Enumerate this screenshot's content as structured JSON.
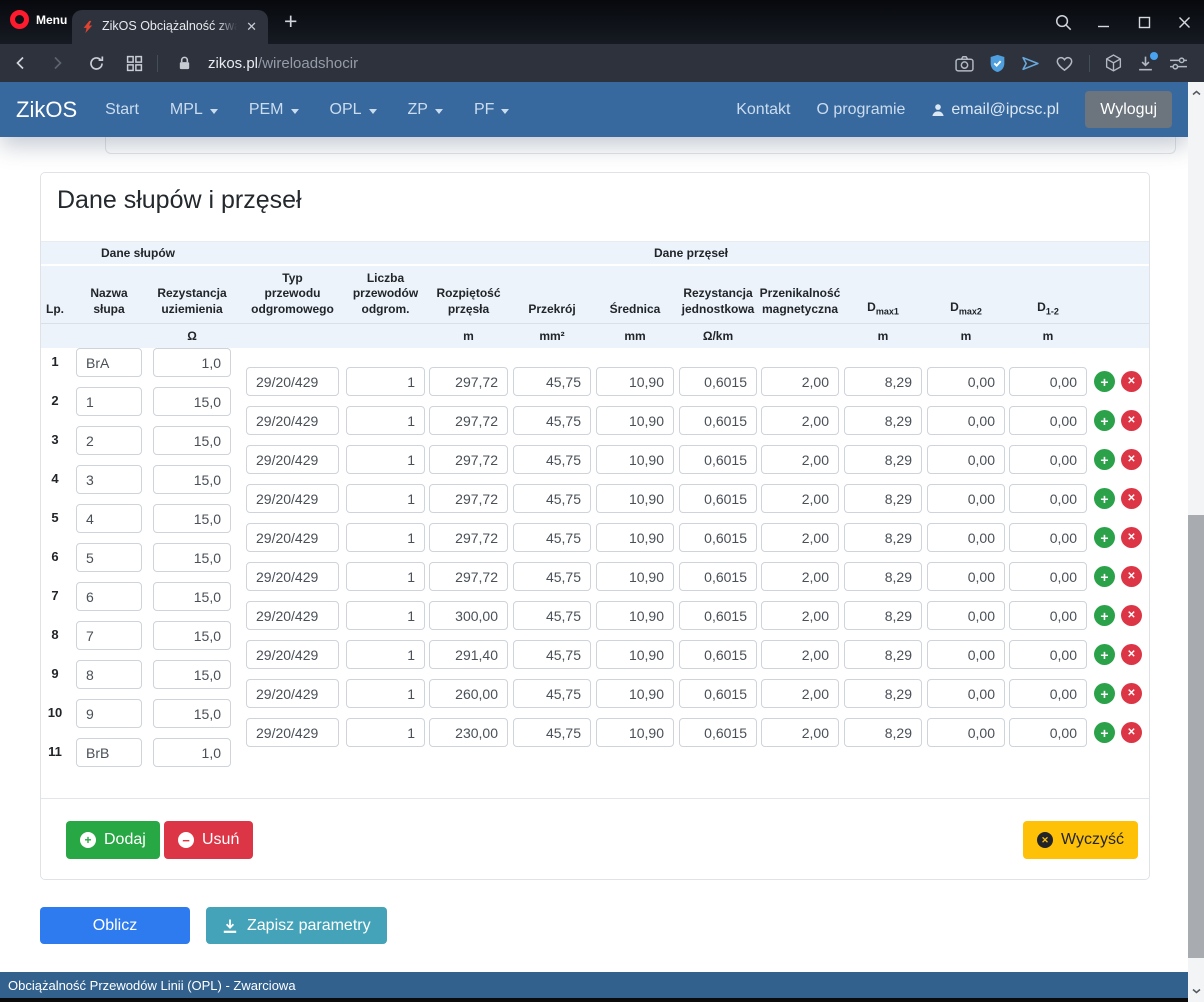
{
  "browser": {
    "menu_label": "Menu",
    "tab_title": "ZikOS Obciążalność zwarciowa",
    "url": {
      "domain": "zikos.pl",
      "path": "/wireloadshocir"
    }
  },
  "navbar": {
    "brand": "ZikOS",
    "links": [
      {
        "label": "Start",
        "dropdown": false
      },
      {
        "label": "MPL",
        "dropdown": true
      },
      {
        "label": "PEM",
        "dropdown": true
      },
      {
        "label": "OPL",
        "dropdown": true
      },
      {
        "label": "ZP",
        "dropdown": true
      },
      {
        "label": "PF",
        "dropdown": true
      }
    ],
    "kontakt": "Kontakt",
    "about": "O programie",
    "user_email": "email@ipcsc.pl",
    "logout": "Wyloguj"
  },
  "page": {
    "title": "Dane słupów i przęseł",
    "table": {
      "groups": {
        "poles": "Dane słupów",
        "spans": "Dane przęseł"
      },
      "columns": [
        {
          "label": "Lp.",
          "unit": ""
        },
        {
          "label": "Nazwa\nsłupa",
          "unit": ""
        },
        {
          "label": "Rezystancja\nuziemienia",
          "unit": "Ω"
        },
        {
          "label": "Typ\nprzewodu\nodgromowego",
          "unit": ""
        },
        {
          "label": "Liczba\nprzewodów\nodgrom.",
          "unit": ""
        },
        {
          "label": "Rozpiętość\nprzęsła",
          "unit": "m"
        },
        {
          "label": "Przekrój",
          "unit": "mm²"
        },
        {
          "label": "Średnica",
          "unit": "mm"
        },
        {
          "label": "Rezystancja\njednostkowa",
          "unit": "Ω/km"
        },
        {
          "label": "Przenikalność\nmagnetyczna",
          "unit": ""
        },
        {
          "label": "D",
          "sub": "max1",
          "unit": "m"
        },
        {
          "label": "D",
          "sub": "max2",
          "unit": "m"
        },
        {
          "label": "D",
          "sub": "1-2",
          "unit": "m"
        }
      ],
      "poles": [
        {
          "lp": "1",
          "name": "BrA",
          "resistance": "1,0"
        },
        {
          "lp": "2",
          "name": "1",
          "resistance": "15,0"
        },
        {
          "lp": "3",
          "name": "2",
          "resistance": "15,0"
        },
        {
          "lp": "4",
          "name": "3",
          "resistance": "15,0"
        },
        {
          "lp": "5",
          "name": "4",
          "resistance": "15,0"
        },
        {
          "lp": "6",
          "name": "5",
          "resistance": "15,0"
        },
        {
          "lp": "7",
          "name": "6",
          "resistance": "15,0"
        },
        {
          "lp": "8",
          "name": "7",
          "resistance": "15,0"
        },
        {
          "lp": "9",
          "name": "8",
          "resistance": "15,0"
        },
        {
          "lp": "10",
          "name": "9",
          "resistance": "15,0"
        },
        {
          "lp": "11",
          "name": "BrB",
          "resistance": "1,0"
        }
      ],
      "spans": [
        {
          "type": "29/20/429",
          "count": "1",
          "length": "297,72",
          "cross_section": "45,75",
          "diameter": "10,90",
          "unit_resistance": "0,6015",
          "permeability": "2,00",
          "dmax1": "8,29",
          "dmax2": "0,00",
          "d12": "0,00"
        },
        {
          "type": "29/20/429",
          "count": "1",
          "length": "297,72",
          "cross_section": "45,75",
          "diameter": "10,90",
          "unit_resistance": "0,6015",
          "permeability": "2,00",
          "dmax1": "8,29",
          "dmax2": "0,00",
          "d12": "0,00"
        },
        {
          "type": "29/20/429",
          "count": "1",
          "length": "297,72",
          "cross_section": "45,75",
          "diameter": "10,90",
          "unit_resistance": "0,6015",
          "permeability": "2,00",
          "dmax1": "8,29",
          "dmax2": "0,00",
          "d12": "0,00"
        },
        {
          "type": "29/20/429",
          "count": "1",
          "length": "297,72",
          "cross_section": "45,75",
          "diameter": "10,90",
          "unit_resistance": "0,6015",
          "permeability": "2,00",
          "dmax1": "8,29",
          "dmax2": "0,00",
          "d12": "0,00"
        },
        {
          "type": "29/20/429",
          "count": "1",
          "length": "297,72",
          "cross_section": "45,75",
          "diameter": "10,90",
          "unit_resistance": "0,6015",
          "permeability": "2,00",
          "dmax1": "8,29",
          "dmax2": "0,00",
          "d12": "0,00"
        },
        {
          "type": "29/20/429",
          "count": "1",
          "length": "297,72",
          "cross_section": "45,75",
          "diameter": "10,90",
          "unit_resistance": "0,6015",
          "permeability": "2,00",
          "dmax1": "8,29",
          "dmax2": "0,00",
          "d12": "0,00"
        },
        {
          "type": "29/20/429",
          "count": "1",
          "length": "300,00",
          "cross_section": "45,75",
          "diameter": "10,90",
          "unit_resistance": "0,6015",
          "permeability": "2,00",
          "dmax1": "8,29",
          "dmax2": "0,00",
          "d12": "0,00"
        },
        {
          "type": "29/20/429",
          "count": "1",
          "length": "291,40",
          "cross_section": "45,75",
          "diameter": "10,90",
          "unit_resistance": "0,6015",
          "permeability": "2,00",
          "dmax1": "8,29",
          "dmax2": "0,00",
          "d12": "0,00"
        },
        {
          "type": "29/20/429",
          "count": "1",
          "length": "260,00",
          "cross_section": "45,75",
          "diameter": "10,90",
          "unit_resistance": "0,6015",
          "permeability": "2,00",
          "dmax1": "8,29",
          "dmax2": "0,00",
          "d12": "0,00"
        },
        {
          "type": "29/20/429",
          "count": "1",
          "length": "230,00",
          "cross_section": "45,75",
          "diameter": "10,90",
          "unit_resistance": "0,6015",
          "permeability": "2,00",
          "dmax1": "8,29",
          "dmax2": "0,00",
          "d12": "0,00"
        }
      ]
    },
    "buttons": {
      "add": "Dodaj",
      "remove": "Usuń",
      "clear": "Wyczyść",
      "calculate": "Oblicz",
      "save": "Zapisz parametry"
    }
  },
  "footer": {
    "text": "Obciążalność Przewodów Linii (OPL) - Zwarciowa"
  },
  "icons": {
    "opera-logo": "red-ring-o",
    "tab-favicon": "red-lightning-bolt",
    "tab-close": "✕",
    "new-tab": "+",
    "search": "magnifier",
    "minimize": "—",
    "maximize": "□",
    "window-close": "✕",
    "back": "chevron-left",
    "forward": "chevron-right",
    "reload": "circular-arrow",
    "speed-dial": "grid-squares",
    "lock": "padlock",
    "camera": "snapshot-camera",
    "shield": "shield-check",
    "send": "paper-plane",
    "heart": "heart-outline",
    "box": "cube",
    "download": "arrow-down-tray",
    "settings": "sliders",
    "user": "person",
    "dropdown": "▾",
    "row-add": "+",
    "row-delete": "✕",
    "add": "⊕",
    "remove": "⊖",
    "clear": "⊗",
    "save": "download-arrow",
    "scroll-up": "∧",
    "scroll-down": "∨"
  },
  "colors": {
    "navbar": "#38699e",
    "footer": "#32618d",
    "table_band": "#ecf3fb",
    "add_button": "#28a745",
    "remove_button": "#dc3545",
    "clear_button": "#ffc107",
    "calculate_button": "#2e7bf0",
    "save_button": "#44a3b8",
    "row_add_button": "#2ba24a",
    "row_delete_button": "#dc3545"
  }
}
